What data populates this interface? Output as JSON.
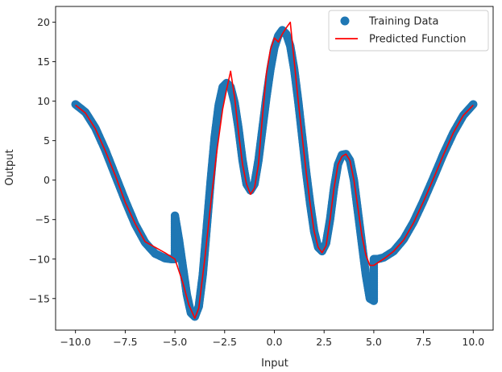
{
  "chart_data": {
    "type": "scatter",
    "title": "",
    "xlabel": "Input",
    "ylabel": "Output",
    "xlim": [
      -11.0,
      11.0
    ],
    "ylim": [
      -19.0,
      22.0
    ],
    "xticks": [
      -10.0,
      -7.5,
      -5.0,
      -2.5,
      0.0,
      2.5,
      5.0,
      7.5,
      10.0
    ],
    "xtick_labels": [
      "−10.0",
      "−7.5",
      "−5.0",
      "−2.5",
      "0.0",
      "2.5",
      "5.0",
      "7.5",
      "10.0"
    ],
    "yticks": [
      -15,
      -10,
      -5,
      0,
      5,
      10,
      15,
      20
    ],
    "ytick_labels": [
      "−15",
      "−10",
      "−5",
      "0",
      "5",
      "10",
      "15",
      "20"
    ],
    "grid": false,
    "legend": {
      "placement": "top-right",
      "entries": [
        "Training Data",
        "Predicted Function"
      ]
    },
    "series": [
      {
        "name": "Training Data",
        "kind": "scatter",
        "color": "#1f77b4",
        "x": [
          -10.0,
          -9.5,
          -9.0,
          -8.5,
          -8.0,
          -7.5,
          -7.0,
          -6.5,
          -6.0,
          -5.5,
          -5.2,
          -5.0,
          -5.0,
          -4.8,
          -4.6,
          -4.4,
          -4.2,
          -4.0,
          -3.8,
          -3.6,
          -3.4,
          -3.2,
          -3.0,
          -2.8,
          -2.6,
          -2.4,
          -2.2,
          -2.0,
          -1.8,
          -1.6,
          -1.4,
          -1.2,
          -1.0,
          -0.8,
          -0.6,
          -0.4,
          -0.2,
          0.0,
          0.2,
          0.4,
          0.6,
          0.8,
          1.0,
          1.2,
          1.4,
          1.6,
          1.8,
          2.0,
          2.2,
          2.4,
          2.6,
          2.8,
          3.0,
          3.2,
          3.4,
          3.6,
          3.8,
          4.0,
          4.2,
          4.4,
          4.6,
          4.8,
          5.0,
          5.0,
          5.2,
          5.5,
          6.0,
          6.5,
          7.0,
          7.5,
          8.0,
          8.5,
          9.0,
          9.5,
          10.0
        ],
        "y": [
          9.6,
          8.6,
          6.6,
          3.8,
          0.6,
          -2.6,
          -5.6,
          -7.9,
          -9.3,
          -9.9,
          -10.0,
          -10.0,
          -4.5,
          -7.5,
          -11.0,
          -14.5,
          -16.8,
          -17.3,
          -16.0,
          -12.0,
          -6.0,
          0.0,
          5.5,
          9.5,
          11.8,
          12.3,
          11.8,
          9.8,
          6.5,
          2.5,
          -0.5,
          -1.3,
          -0.5,
          2.5,
          6.5,
          10.5,
          14.0,
          16.8,
          18.3,
          19.0,
          18.5,
          17.0,
          14.0,
          10.0,
          5.5,
          1.0,
          -3.0,
          -6.5,
          -8.5,
          -9.0,
          -8.0,
          -5.0,
          -1.0,
          2.0,
          3.2,
          3.3,
          2.5,
          0.0,
          -4.0,
          -8.0,
          -12.0,
          -15.0,
          -15.3,
          -10.0,
          -10.0,
          -9.8,
          -9.0,
          -7.5,
          -5.3,
          -2.6,
          0.3,
          3.3,
          6.0,
          8.2,
          9.6
        ]
      },
      {
        "name": "Predicted Function",
        "kind": "line",
        "color": "#ff0000",
        "x": [
          -10.0,
          -9.5,
          -9.0,
          -8.5,
          -8.0,
          -7.5,
          -7.0,
          -6.5,
          -6.0,
          -5.5,
          -5.0,
          -4.6,
          -4.3,
          -4.0,
          -3.8,
          -3.5,
          -3.2,
          -2.9,
          -2.6,
          -2.4,
          -2.2,
          -2.0,
          -1.8,
          -1.6,
          -1.4,
          -1.2,
          -1.0,
          -0.8,
          -0.6,
          -0.4,
          -0.2,
          0.0,
          0.2,
          0.4,
          0.6,
          0.8,
          1.0,
          1.2,
          1.4,
          1.6,
          1.8,
          2.0,
          2.2,
          2.4,
          2.6,
          2.8,
          3.0,
          3.2,
          3.4,
          3.6,
          3.8,
          4.0,
          4.2,
          4.4,
          4.6,
          4.8,
          5.0,
          5.3,
          5.6,
          6.0,
          6.5,
          7.0,
          7.5,
          8.0,
          8.5,
          9.0,
          9.5,
          10.0
        ],
        "y": [
          9.5,
          8.5,
          6.5,
          3.7,
          0.6,
          -2.8,
          -5.5,
          -7.8,
          -8.5,
          -9.2,
          -10.0,
          -13.0,
          -15.8,
          -17.5,
          -16.2,
          -10.0,
          -3.0,
          3.5,
          9.0,
          11.5,
          13.8,
          10.5,
          6.0,
          2.0,
          -0.5,
          -1.8,
          -1.0,
          2.0,
          8.0,
          13.5,
          16.5,
          18.0,
          17.5,
          18.5,
          19.3,
          20.0,
          15.0,
          10.0,
          5.5,
          1.0,
          -3.0,
          -6.5,
          -8.5,
          -9.2,
          -8.3,
          -5.0,
          -1.0,
          2.0,
          3.0,
          3.3,
          2.5,
          0.0,
          -3.5,
          -7.0,
          -9.5,
          -10.8,
          -10.8,
          -10.3,
          -9.8,
          -9.0,
          -7.6,
          -5.4,
          -2.7,
          0.2,
          3.2,
          6.0,
          8.2,
          9.5
        ]
      }
    ]
  }
}
